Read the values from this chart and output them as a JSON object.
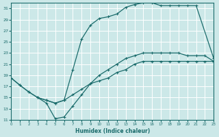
{
  "xlabel": "Humidex (Indice chaleur)",
  "bg_color": "#cce8e8",
  "grid_color": "#ffffff",
  "line_color": "#1a6b6b",
  "xlim": [
    0,
    23
  ],
  "ylim": [
    11,
    32
  ],
  "xticks": [
    0,
    1,
    2,
    3,
    4,
    5,
    6,
    7,
    8,
    9,
    10,
    11,
    12,
    13,
    14,
    15,
    16,
    17,
    18,
    19,
    20,
    21,
    22,
    23
  ],
  "yticks": [
    11,
    13,
    15,
    17,
    19,
    21,
    23,
    25,
    27,
    29,
    31
  ],
  "curve_top_x": [
    0,
    1,
    2,
    3,
    4,
    5,
    6,
    7,
    8,
    9,
    10,
    11,
    12,
    13,
    14,
    15,
    16,
    17,
    18,
    19,
    20,
    21,
    23
  ],
  "curve_top_y": [
    18.5,
    17.2,
    16.0,
    15.0,
    14.5,
    14.0,
    14.5,
    20.0,
    25.5,
    28.0,
    29.2,
    29.5,
    30.0,
    31.2,
    31.7,
    32.0,
    32.0,
    31.5,
    31.5,
    31.5,
    31.5,
    31.5,
    22.0
  ],
  "curve_diag_x": [
    0,
    1,
    2,
    3,
    4,
    5,
    6,
    7,
    8,
    9,
    10,
    11,
    12,
    13,
    14,
    15,
    16,
    17,
    18,
    19,
    20,
    21,
    22,
    23
  ],
  "curve_diag_y": [
    18.5,
    17.2,
    16.0,
    15.0,
    14.5,
    14.0,
    14.5,
    15.5,
    16.5,
    17.5,
    18.0,
    18.5,
    19.5,
    20.0,
    21.0,
    21.5,
    21.5,
    21.5,
    21.5,
    21.5,
    21.5,
    21.5,
    21.5,
    21.5
  ],
  "curve_val_x": [
    3,
    4,
    5,
    6,
    7,
    8,
    9,
    10,
    11,
    12,
    13,
    14,
    15,
    16,
    17,
    18,
    19,
    20,
    21,
    22,
    23
  ],
  "curve_val_y": [
    15.0,
    14.0,
    11.2,
    11.5,
    13.5,
    15.5,
    17.5,
    19.0,
    20.0,
    21.0,
    22.0,
    22.5,
    23.0,
    23.0,
    23.0,
    23.0,
    23.0,
    22.5,
    22.5,
    22.5,
    21.5
  ]
}
